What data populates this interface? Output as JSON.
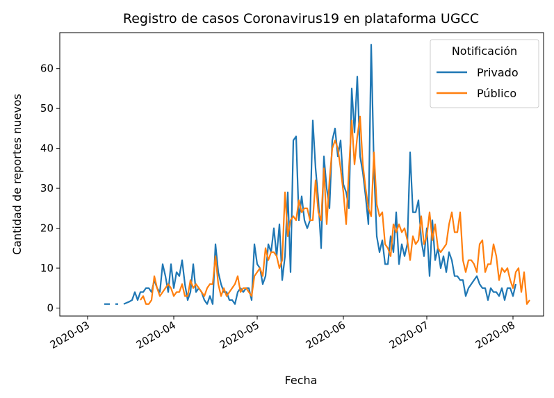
{
  "chart_data": {
    "type": "line",
    "title": "Registro de casos Coronavirus19 en plataforma UGCC",
    "xlabel": "Fecha",
    "ylabel": "Cantidad de reportes nuevos",
    "x_range": [
      "2020-02-20",
      "2020-08-12"
    ],
    "ylim": [
      -2,
      69
    ],
    "y_ticks": [
      0,
      10,
      20,
      30,
      40,
      50,
      60
    ],
    "x_ticks": [
      "2020-03-01",
      "2020-04-01",
      "2020-05-01",
      "2020-06-01",
      "2020-07-01",
      "2020-08-01"
    ],
    "x_tick_labels": [
      "2020-03",
      "2020-04",
      "2020-05",
      "2020-06",
      "2020-07",
      "2020-08"
    ],
    "grid": false,
    "legend": {
      "title": "Notificación",
      "placement": "top-right"
    },
    "series": [
      {
        "name": "Privado",
        "color": "#1f77b4",
        "data": [
          [
            "2020-03-07",
            1
          ],
          [
            "2020-03-08",
            1
          ],
          [
            "2020-03-09",
            1
          ],
          null,
          [
            "2020-03-11",
            1
          ],
          [
            "2020-03-12",
            1
          ],
          null,
          [
            "2020-03-14",
            1
          ],
          [
            "2020-03-15",
            1.3
          ],
          [
            "2020-03-16",
            1.6
          ],
          [
            "2020-03-17",
            2
          ],
          [
            "2020-03-18",
            4
          ],
          [
            "2020-03-19",
            2
          ],
          [
            "2020-03-20",
            4
          ],
          [
            "2020-03-21",
            4
          ],
          [
            "2020-03-22",
            5
          ],
          [
            "2020-03-23",
            5
          ],
          [
            "2020-03-24",
            4
          ],
          [
            "2020-03-25",
            7
          ],
          [
            "2020-03-26",
            5
          ],
          [
            "2020-03-27",
            4
          ],
          [
            "2020-03-28",
            11
          ],
          [
            "2020-03-29",
            8
          ],
          [
            "2020-03-30",
            4
          ],
          [
            "2020-03-31",
            11
          ],
          [
            "2020-04-01",
            5
          ],
          [
            "2020-04-02",
            9
          ],
          [
            "2020-04-03",
            8
          ],
          [
            "2020-04-04",
            12
          ],
          [
            "2020-04-05",
            6
          ],
          [
            "2020-04-06",
            2
          ],
          [
            "2020-04-07",
            4
          ],
          [
            "2020-04-08",
            11
          ],
          [
            "2020-04-09",
            4
          ],
          [
            "2020-04-10",
            5
          ],
          [
            "2020-04-11",
            4
          ],
          [
            "2020-04-12",
            2
          ],
          [
            "2020-04-13",
            1
          ],
          [
            "2020-04-14",
            3
          ],
          [
            "2020-04-15",
            1
          ],
          [
            "2020-04-16",
            16
          ],
          [
            "2020-04-17",
            9
          ],
          [
            "2020-04-18",
            6
          ],
          [
            "2020-04-19",
            4
          ],
          [
            "2020-04-20",
            4
          ],
          [
            "2020-04-21",
            2
          ],
          [
            "2020-04-22",
            2
          ],
          [
            "2020-04-23",
            1
          ],
          [
            "2020-04-24",
            4
          ],
          [
            "2020-04-25",
            5
          ],
          [
            "2020-04-26",
            4
          ],
          [
            "2020-04-27",
            5
          ],
          [
            "2020-04-28",
            5
          ],
          [
            "2020-04-29",
            2
          ],
          [
            "2020-04-30",
            16
          ],
          [
            "2020-05-01",
            11
          ],
          [
            "2020-05-02",
            10
          ],
          [
            "2020-05-03",
            6
          ],
          [
            "2020-05-04",
            8
          ],
          [
            "2020-05-05",
            16
          ],
          [
            "2020-05-06",
            14
          ],
          [
            "2020-05-07",
            20
          ],
          [
            "2020-05-08",
            13
          ],
          [
            "2020-05-09",
            21
          ],
          [
            "2020-05-10",
            7
          ],
          [
            "2020-05-11",
            13
          ],
          [
            "2020-05-12",
            29
          ],
          [
            "2020-05-13",
            9
          ],
          [
            "2020-05-14",
            42
          ],
          [
            "2020-05-15",
            43
          ],
          [
            "2020-05-16",
            22
          ],
          [
            "2020-05-17",
            28
          ],
          [
            "2020-05-18",
            22
          ],
          [
            "2020-05-19",
            20
          ],
          [
            "2020-05-20",
            22
          ],
          [
            "2020-05-21",
            47
          ],
          [
            "2020-05-22",
            35
          ],
          [
            "2020-05-23",
            27
          ],
          [
            "2020-05-24",
            15
          ],
          [
            "2020-05-25",
            38
          ],
          [
            "2020-05-26",
            30
          ],
          [
            "2020-05-27",
            25
          ],
          [
            "2020-05-28",
            42
          ],
          [
            "2020-05-29",
            45
          ],
          [
            "2020-05-30",
            38
          ],
          [
            "2020-05-31",
            42
          ],
          [
            "2020-06-01",
            31
          ],
          [
            "2020-06-02",
            29
          ],
          [
            "2020-06-03",
            25
          ],
          [
            "2020-06-04",
            55
          ],
          [
            "2020-06-05",
            44
          ],
          [
            "2020-06-06",
            58
          ],
          [
            "2020-06-07",
            38
          ],
          [
            "2020-06-08",
            34
          ],
          [
            "2020-06-09",
            28
          ],
          [
            "2020-06-10",
            21
          ],
          [
            "2020-06-11",
            66
          ],
          [
            "2020-06-12",
            35
          ],
          [
            "2020-06-13",
            18
          ],
          [
            "2020-06-14",
            14
          ],
          [
            "2020-06-15",
            17
          ],
          [
            "2020-06-16",
            11
          ],
          [
            "2020-06-17",
            11
          ],
          [
            "2020-06-18",
            18
          ],
          [
            "2020-06-19",
            14
          ],
          [
            "2020-06-20",
            24
          ],
          [
            "2020-06-21",
            11
          ],
          [
            "2020-06-22",
            16
          ],
          [
            "2020-06-23",
            13
          ],
          [
            "2020-06-24",
            16
          ],
          [
            "2020-06-25",
            39
          ],
          [
            "2020-06-26",
            24
          ],
          [
            "2020-06-27",
            24
          ],
          [
            "2020-06-28",
            27
          ],
          [
            "2020-06-29",
            17
          ],
          [
            "2020-06-30",
            13
          ],
          [
            "2020-07-01",
            20
          ],
          [
            "2020-07-02",
            8
          ],
          [
            "2020-07-03",
            22
          ],
          [
            "2020-07-04",
            12
          ],
          [
            "2020-07-05",
            15
          ],
          [
            "2020-07-06",
            10
          ],
          [
            "2020-07-07",
            13
          ],
          [
            "2020-07-08",
            9
          ],
          [
            "2020-07-09",
            14
          ],
          [
            "2020-07-10",
            12
          ],
          [
            "2020-07-11",
            8
          ],
          [
            "2020-07-12",
            8
          ],
          [
            "2020-07-13",
            7
          ],
          [
            "2020-07-14",
            7
          ],
          [
            "2020-07-15",
            3
          ],
          [
            "2020-07-16",
            5
          ],
          [
            "2020-07-17",
            6
          ],
          [
            "2020-07-18",
            7
          ],
          [
            "2020-07-19",
            8
          ],
          [
            "2020-07-20",
            6
          ],
          [
            "2020-07-21",
            5
          ],
          [
            "2020-07-22",
            5
          ],
          [
            "2020-07-23",
            2
          ],
          [
            "2020-07-24",
            5
          ],
          [
            "2020-07-25",
            4
          ],
          [
            "2020-07-26",
            4
          ],
          [
            "2020-07-27",
            3
          ],
          [
            "2020-07-28",
            5
          ],
          [
            "2020-07-29",
            2
          ],
          [
            "2020-07-30",
            5
          ],
          [
            "2020-07-31",
            5
          ],
          [
            "2020-08-01",
            3
          ],
          [
            "2020-08-02",
            6
          ]
        ]
      },
      {
        "name": "Público",
        "color": "#ff7f0e",
        "data": [
          [
            "2020-03-20",
            2
          ],
          [
            "2020-03-21",
            3
          ],
          [
            "2020-03-22",
            1
          ],
          [
            "2020-03-23",
            1
          ],
          [
            "2020-03-24",
            2
          ],
          [
            "2020-03-25",
            8
          ],
          [
            "2020-03-26",
            5
          ],
          [
            "2020-03-27",
            3
          ],
          [
            "2020-03-28",
            4
          ],
          [
            "2020-03-29",
            5
          ],
          [
            "2020-03-30",
            6
          ],
          [
            "2020-03-31",
            5
          ],
          [
            "2020-04-01",
            3
          ],
          [
            "2020-04-02",
            4
          ],
          [
            "2020-04-03",
            4
          ],
          [
            "2020-04-04",
            6
          ],
          [
            "2020-04-05",
            3
          ],
          [
            "2020-04-06",
            3
          ],
          [
            "2020-04-07",
            7
          ],
          [
            "2020-04-08",
            5
          ],
          [
            "2020-04-09",
            6
          ],
          [
            "2020-04-10",
            5
          ],
          [
            "2020-04-11",
            4
          ],
          [
            "2020-04-12",
            3
          ],
          [
            "2020-04-13",
            5
          ],
          [
            "2020-04-14",
            6
          ],
          [
            "2020-04-15",
            6
          ],
          [
            "2020-04-16",
            13
          ],
          [
            "2020-04-17",
            6
          ],
          [
            "2020-04-18",
            3
          ],
          [
            "2020-04-19",
            5
          ],
          [
            "2020-04-20",
            3
          ],
          [
            "2020-04-21",
            4
          ],
          [
            "2020-04-22",
            5
          ],
          [
            "2020-04-23",
            6
          ],
          [
            "2020-04-24",
            8
          ],
          [
            "2020-04-25",
            4
          ],
          [
            "2020-04-26",
            5
          ],
          [
            "2020-04-27",
            5
          ],
          [
            "2020-04-28",
            4
          ],
          [
            "2020-04-29",
            3
          ],
          [
            "2020-04-30",
            8
          ],
          [
            "2020-05-01",
            9
          ],
          [
            "2020-05-02",
            10
          ],
          [
            "2020-05-03",
            8
          ],
          [
            "2020-05-04",
            15
          ],
          [
            "2020-05-05",
            12
          ],
          [
            "2020-05-06",
            14
          ],
          [
            "2020-05-07",
            14
          ],
          [
            "2020-05-08",
            13
          ],
          [
            "2020-05-09",
            10
          ],
          [
            "2020-05-10",
            12
          ],
          [
            "2020-05-11",
            29
          ],
          [
            "2020-05-12",
            18
          ],
          [
            "2020-05-13",
            22
          ],
          [
            "2020-05-14",
            23
          ],
          [
            "2020-05-15",
            22
          ],
          [
            "2020-05-16",
            27
          ],
          [
            "2020-05-17",
            24
          ],
          [
            "2020-05-18",
            25
          ],
          [
            "2020-05-19",
            25
          ],
          [
            "2020-05-20",
            22
          ],
          [
            "2020-05-21",
            22
          ],
          [
            "2020-05-22",
            32
          ],
          [
            "2020-05-23",
            24
          ],
          [
            "2020-05-24",
            22
          ],
          [
            "2020-05-25",
            35
          ],
          [
            "2020-05-26",
            21
          ],
          [
            "2020-05-27",
            32
          ],
          [
            "2020-05-28",
            40
          ],
          [
            "2020-05-29",
            42
          ],
          [
            "2020-05-30",
            40
          ],
          [
            "2020-05-31",
            35
          ],
          [
            "2020-06-01",
            29
          ],
          [
            "2020-06-02",
            21
          ],
          [
            "2020-06-03",
            35
          ],
          [
            "2020-06-04",
            47
          ],
          [
            "2020-06-05",
            36
          ],
          [
            "2020-06-06",
            43
          ],
          [
            "2020-06-07",
            48
          ],
          [
            "2020-06-08",
            36
          ],
          [
            "2020-06-09",
            30
          ],
          [
            "2020-06-10",
            25
          ],
          [
            "2020-06-11",
            23
          ],
          [
            "2020-06-12",
            39
          ],
          [
            "2020-06-13",
            26
          ],
          [
            "2020-06-14",
            23
          ],
          [
            "2020-06-15",
            24
          ],
          [
            "2020-06-16",
            16
          ],
          [
            "2020-06-17",
            15
          ],
          [
            "2020-06-18",
            13
          ],
          [
            "2020-06-19",
            21
          ],
          [
            "2020-06-20",
            19
          ],
          [
            "2020-06-21",
            21
          ],
          [
            "2020-06-22",
            19
          ],
          [
            "2020-06-23",
            20
          ],
          [
            "2020-06-24",
            17
          ],
          [
            "2020-06-25",
            12
          ],
          [
            "2020-06-26",
            18
          ],
          [
            "2020-06-27",
            16
          ],
          [
            "2020-06-28",
            17
          ],
          [
            "2020-06-29",
            23
          ],
          [
            "2020-06-30",
            16
          ],
          [
            "2020-07-01",
            18
          ],
          [
            "2020-07-02",
            24
          ],
          [
            "2020-07-03",
            17
          ],
          [
            "2020-07-04",
            21
          ],
          [
            "2020-07-05",
            15
          ],
          [
            "2020-07-06",
            14
          ],
          [
            "2020-07-07",
            15
          ],
          [
            "2020-07-08",
            16
          ],
          [
            "2020-07-09",
            21
          ],
          [
            "2020-07-10",
            24
          ],
          [
            "2020-07-11",
            19
          ],
          [
            "2020-07-12",
            19
          ],
          [
            "2020-07-13",
            24
          ],
          [
            "2020-07-14",
            12
          ],
          [
            "2020-07-15",
            9
          ],
          [
            "2020-07-16",
            12
          ],
          [
            "2020-07-17",
            12
          ],
          [
            "2020-07-18",
            11
          ],
          [
            "2020-07-19",
            9
          ],
          [
            "2020-07-20",
            16
          ],
          [
            "2020-07-21",
            17
          ],
          [
            "2020-07-22",
            9
          ],
          [
            "2020-07-23",
            11
          ],
          [
            "2020-07-24",
            11
          ],
          [
            "2020-07-25",
            16
          ],
          [
            "2020-07-26",
            13
          ],
          [
            "2020-07-27",
            7
          ],
          [
            "2020-07-28",
            10
          ],
          [
            "2020-07-29",
            9
          ],
          [
            "2020-07-30",
            10
          ],
          [
            "2020-07-31",
            7
          ],
          [
            "2020-08-01",
            5
          ],
          [
            "2020-08-02",
            9
          ],
          [
            "2020-08-03",
            10
          ],
          [
            "2020-08-04",
            4
          ],
          [
            "2020-08-05",
            9
          ],
          [
            "2020-08-06",
            1
          ],
          [
            "2020-08-07",
            2
          ]
        ]
      }
    ]
  }
}
